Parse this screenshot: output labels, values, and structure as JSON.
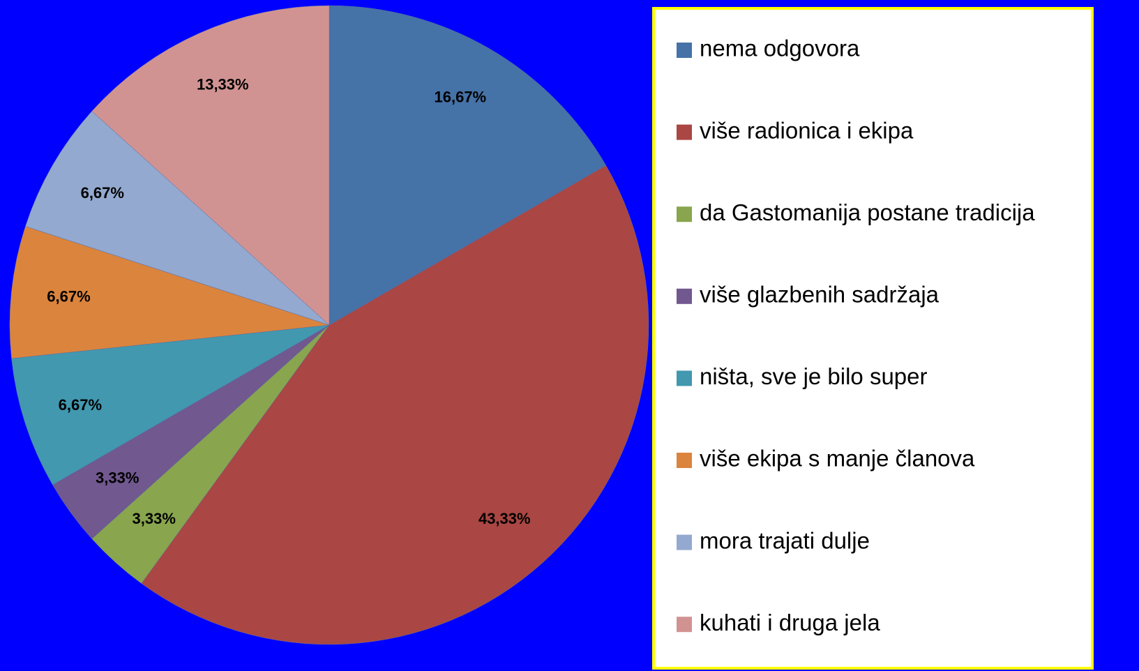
{
  "chart_data": {
    "type": "pie",
    "categories": [
      "nema odgovora",
      "više radionica i ekipa",
      "da Gastomanija postane tradicija",
      "više glazbenih sadržaja",
      "ništa, sve je bilo super",
      "više ekipa s manje članova",
      "mora trajati dulje",
      "kuhati i druga jela"
    ],
    "values": [
      16.67,
      43.33,
      3.33,
      3.33,
      6.67,
      6.67,
      6.67,
      13.33
    ],
    "value_labels": [
      "16,67%",
      "43,33%",
      "3,33%",
      "3,33%",
      "6,67%",
      "6,67%",
      "6,67%",
      "13,33%"
    ],
    "colors": [
      "#4572a7",
      "#aa4643",
      "#89a54e",
      "#71588f",
      "#4198af",
      "#db843d",
      "#93a9cf",
      "#d19392"
    ]
  }
}
